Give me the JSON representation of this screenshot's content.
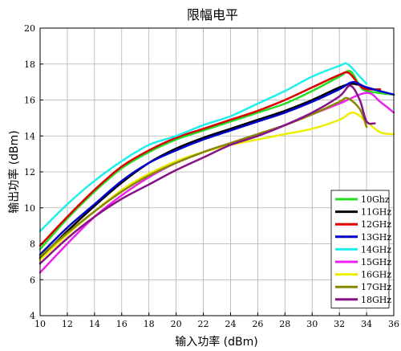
{
  "chart_data": {
    "type": "line",
    "title": "限幅电平",
    "xlabel": "输入功率 (dBm)",
    "ylabel": "输出功率 (dBm)",
    "xlim": [
      10,
      36
    ],
    "ylim": [
      4,
      20
    ],
    "xticks": [
      10,
      12,
      14,
      16,
      18,
      20,
      22,
      24,
      26,
      28,
      30,
      32,
      34,
      36
    ],
    "yticks": [
      4,
      6,
      8,
      10,
      12,
      14,
      16,
      18,
      20
    ],
    "grid": true,
    "legend_position": "bottom-right",
    "series": [
      {
        "name": "10Ghz",
        "color": "#22dd22",
        "points": [
          [
            10,
            7.7
          ],
          [
            12,
            9.4
          ],
          [
            14,
            10.9
          ],
          [
            16,
            12.2
          ],
          [
            18,
            13.1
          ],
          [
            20,
            13.8
          ],
          [
            22,
            14.3
          ],
          [
            24,
            14.8
          ],
          [
            26,
            15.3
          ],
          [
            28,
            15.8
          ],
          [
            30,
            16.5
          ],
          [
            32,
            17.3
          ],
          [
            32.8,
            17.6
          ],
          [
            33.5,
            16.8
          ],
          [
            34,
            16.5
          ],
          [
            36,
            16.3
          ]
        ]
      },
      {
        "name": "11GHz",
        "color": "#000000",
        "points": [
          [
            10,
            7.2
          ],
          [
            12,
            8.7
          ],
          [
            14,
            10.1
          ],
          [
            16,
            11.4
          ],
          [
            18,
            12.5
          ],
          [
            20,
            13.3
          ],
          [
            22,
            13.9
          ],
          [
            24,
            14.4
          ],
          [
            26,
            14.9
          ],
          [
            28,
            15.4
          ],
          [
            30,
            16.0
          ],
          [
            32,
            16.7
          ],
          [
            33,
            16.9
          ],
          [
            34,
            16.7
          ],
          [
            35,
            16.5
          ]
        ]
      },
      {
        "name": "12GHz",
        "color": "#dd0000",
        "points": [
          [
            10,
            7.9
          ],
          [
            12,
            9.5
          ],
          [
            14,
            11.0
          ],
          [
            16,
            12.3
          ],
          [
            18,
            13.2
          ],
          [
            20,
            13.9
          ],
          [
            22,
            14.4
          ],
          [
            24,
            14.9
          ],
          [
            26,
            15.4
          ],
          [
            28,
            16.0
          ],
          [
            30,
            16.7
          ],
          [
            32,
            17.4
          ],
          [
            32.7,
            17.5
          ],
          [
            33.5,
            16.8
          ],
          [
            34,
            16.6
          ],
          [
            35,
            16.6
          ]
        ]
      },
      {
        "name": "13GHz",
        "color": "#0000cc",
        "points": [
          [
            10,
            7.4
          ],
          [
            12,
            8.9
          ],
          [
            14,
            10.2
          ],
          [
            16,
            11.5
          ],
          [
            18,
            12.5
          ],
          [
            20,
            13.2
          ],
          [
            22,
            13.8
          ],
          [
            24,
            14.3
          ],
          [
            26,
            14.8
          ],
          [
            28,
            15.3
          ],
          [
            30,
            15.9
          ],
          [
            32,
            16.6
          ],
          [
            33,
            17.0
          ],
          [
            34,
            16.7
          ],
          [
            36,
            16.3
          ]
        ]
      },
      {
        "name": "14GHz",
        "color": "#22eeee",
        "points": [
          [
            10,
            8.7
          ],
          [
            12,
            10.2
          ],
          [
            14,
            11.5
          ],
          [
            16,
            12.6
          ],
          [
            18,
            13.5
          ],
          [
            20,
            14.0
          ],
          [
            22,
            14.6
          ],
          [
            24,
            15.1
          ],
          [
            26,
            15.8
          ],
          [
            28,
            16.5
          ],
          [
            30,
            17.3
          ],
          [
            32,
            17.9
          ],
          [
            32.6,
            18.0
          ],
          [
            33.5,
            17.3
          ],
          [
            34,
            16.9
          ]
        ]
      },
      {
        "name": "15GHz",
        "color": "#ee22ee",
        "points": [
          [
            10,
            6.4
          ],
          [
            12,
            8.0
          ],
          [
            14,
            9.5
          ],
          [
            16,
            10.7
          ],
          [
            18,
            11.7
          ],
          [
            20,
            12.5
          ],
          [
            22,
            13.1
          ],
          [
            24,
            13.6
          ],
          [
            26,
            14.1
          ],
          [
            28,
            14.6
          ],
          [
            30,
            15.2
          ],
          [
            32,
            15.8
          ],
          [
            34,
            16.4
          ],
          [
            35,
            15.9
          ],
          [
            36,
            15.3
          ]
        ]
      },
      {
        "name": "16GHz",
        "color": "#eeee00",
        "points": [
          [
            10,
            7.1
          ],
          [
            12,
            8.5
          ],
          [
            14,
            9.8
          ],
          [
            16,
            11.0
          ],
          [
            18,
            11.9
          ],
          [
            20,
            12.6
          ],
          [
            22,
            13.1
          ],
          [
            24,
            13.5
          ],
          [
            26,
            13.8
          ],
          [
            28,
            14.1
          ],
          [
            30,
            14.4
          ],
          [
            32,
            14.9
          ],
          [
            33,
            15.3
          ],
          [
            34,
            14.8
          ],
          [
            35,
            14.2
          ],
          [
            36,
            14.1
          ]
        ]
      },
      {
        "name": "17GHz",
        "color": "#888800",
        "points": [
          [
            10,
            7.3
          ],
          [
            12,
            8.6
          ],
          [
            14,
            9.8
          ],
          [
            16,
            10.9
          ],
          [
            18,
            11.8
          ],
          [
            20,
            12.5
          ],
          [
            22,
            13.1
          ],
          [
            24,
            13.6
          ],
          [
            26,
            14.1
          ],
          [
            28,
            14.6
          ],
          [
            30,
            15.2
          ],
          [
            32,
            15.9
          ],
          [
            32.6,
            16.1
          ],
          [
            33.5,
            15.5
          ],
          [
            34,
            14.5
          ]
        ]
      },
      {
        "name": "18GHz",
        "color": "#881188",
        "points": [
          [
            10,
            6.9
          ],
          [
            12,
            8.3
          ],
          [
            14,
            9.5
          ],
          [
            16,
            10.5
          ],
          [
            18,
            11.3
          ],
          [
            20,
            12.1
          ],
          [
            22,
            12.8
          ],
          [
            24,
            13.5
          ],
          [
            26,
            14.0
          ],
          [
            28,
            14.6
          ],
          [
            30,
            15.3
          ],
          [
            32,
            16.2
          ],
          [
            32.8,
            16.8
          ],
          [
            33.5,
            16.0
          ],
          [
            34,
            14.8
          ],
          [
            34.6,
            14.7
          ]
        ]
      }
    ]
  }
}
